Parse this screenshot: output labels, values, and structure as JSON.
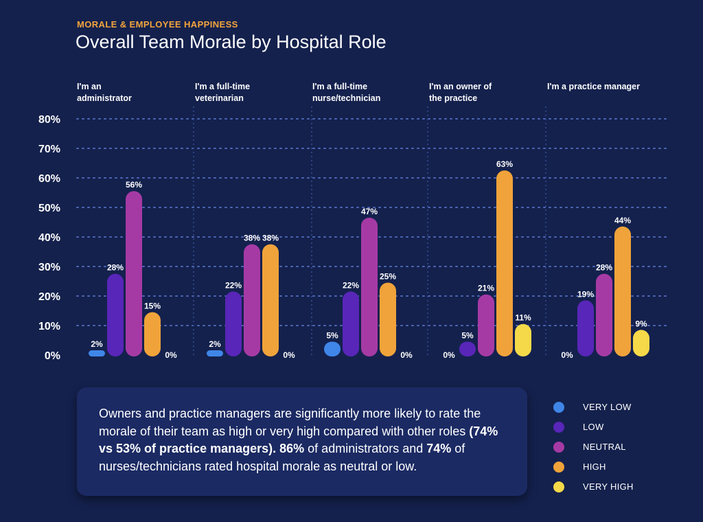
{
  "header": {
    "eyebrow": "MORALE & EMPLOYEE HAPPINESS",
    "title": "Overall Team Morale by Hospital Role"
  },
  "chart_data": {
    "type": "bar",
    "title": "Overall Team Morale by Hospital Role",
    "ylim": [
      0,
      80
    ],
    "yticks": [
      0,
      10,
      20,
      30,
      40,
      50,
      60,
      70,
      80
    ],
    "ytick_labels": [
      "0%",
      "10%",
      "20%",
      "30%",
      "40%",
      "50%",
      "60%",
      "70%",
      "80%"
    ],
    "grid": true,
    "legend_position": "bottom-right",
    "groups": [
      {
        "label_lines": [
          "I'm an",
          "administrator"
        ],
        "values": [
          2,
          28,
          56,
          15,
          0
        ],
        "labels": [
          "2%",
          "28%",
          "56%",
          "15%",
          "0%"
        ]
      },
      {
        "label_lines": [
          "I'm a full-time",
          "veterinarian"
        ],
        "values": [
          2,
          22,
          38,
          38,
          0
        ],
        "labels": [
          "2%",
          "22%",
          "38%",
          "38%",
          "0%"
        ]
      },
      {
        "label_lines": [
          "I'm a full-time",
          "nurse/technician"
        ],
        "values": [
          5,
          22,
          47,
          25,
          0
        ],
        "labels": [
          "5%",
          "22%",
          "47%",
          "25%",
          "0%"
        ]
      },
      {
        "label_lines": [
          "I'm an owner of",
          "the practice"
        ],
        "values": [
          0,
          5,
          21,
          63,
          11
        ],
        "labels": [
          "0%",
          "5%",
          "21%",
          "63%",
          "11%"
        ]
      },
      {
        "label_lines": [
          "I'm a practice manager"
        ],
        "values": [
          0,
          19,
          28,
          44,
          9
        ],
        "labels": [
          "0%",
          "19%",
          "28%",
          "44%",
          "9%"
        ]
      }
    ],
    "series": [
      {
        "name": "VERY LOW",
        "color": "#3f86e8"
      },
      {
        "name": "LOW",
        "color": "#5826b8"
      },
      {
        "name": "NEUTRAL",
        "color": "#a63aa5"
      },
      {
        "name": "HIGH",
        "color": "#f0a33a"
      },
      {
        "name": "VERY HIGH",
        "color": "#f5d949"
      }
    ]
  },
  "callout": {
    "segments": [
      {
        "text": "Owners and practice managers are significantly more likely to rate the morale of their team as high or very high compared with other roles ",
        "bold": false
      },
      {
        "text": "(74% vs 53% of practice managers).",
        "bold": true
      },
      {
        "text": " ",
        "bold": false
      },
      {
        "text": "86%",
        "bold": true
      },
      {
        "text": " of administrators and ",
        "bold": false
      },
      {
        "text": "74%",
        "bold": true
      },
      {
        "text": " of nurses/technicians rated hospital morale as neutral or low.",
        "bold": false
      }
    ]
  }
}
